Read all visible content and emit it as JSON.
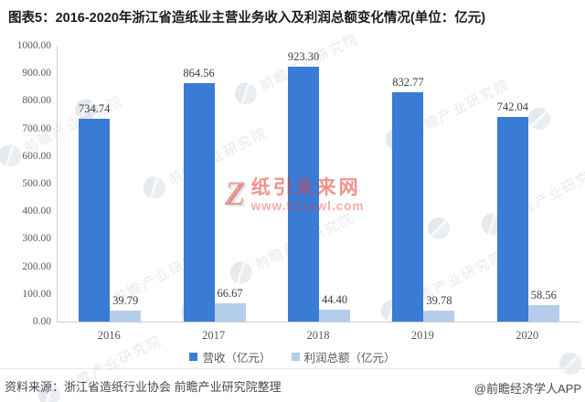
{
  "title": "图表5：2016-2020年浙江省造纸业主营业务收入及利润总额变化情况(单位：亿元)",
  "chart_data": {
    "type": "bar",
    "title": "图表5：2016-2020年浙江省造纸业主营业务收入及利润总额变化情况(单位：亿元)",
    "categories": [
      "2016",
      "2017",
      "2018",
      "2019",
      "2020"
    ],
    "series": [
      {
        "name": "营收（亿元）",
        "color": "#3a7cd5",
        "values": [
          734.74,
          864.56,
          923.3,
          832.77,
          742.04
        ]
      },
      {
        "name": "利润总额（亿元）",
        "color": "#b4cdea",
        "values": [
          39.79,
          66.67,
          44.4,
          39.78,
          58.56
        ]
      }
    ],
    "xlabel": "",
    "ylabel": "",
    "ylim": [
      0,
      1000
    ],
    "ytick_step": 100,
    "ytick_format_decimals": 2,
    "grid": false,
    "legend_position": "bottom"
  },
  "footer": {
    "source": "资料来源：浙江省造纸行业协会 前瞻产业研究院整理",
    "credit": "@前瞻经济学人APP"
  },
  "watermarks": {
    "center_logo": "Z",
    "center_brand": "纸引未来网",
    "center_url": "www.51zywl.com",
    "diagonal_text": "前瞻产业研究院"
  }
}
